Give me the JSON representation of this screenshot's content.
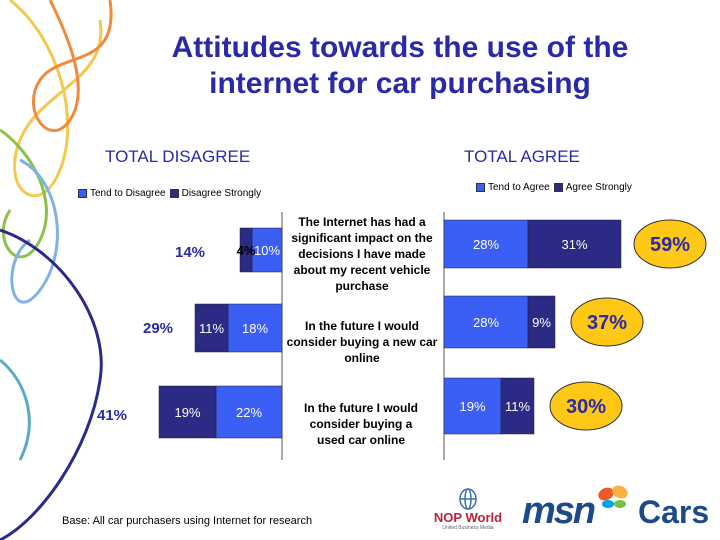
{
  "title": "Attitudes towards the use of the internet for car purchasing",
  "footer": "Base: All car purchasers using Internet for research",
  "brand": {
    "nop": "NOP World",
    "nop_sub": "United Business Media",
    "msn": "msn",
    "cars": "Cars"
  },
  "colors": {
    "light_blue": "#3b5ef5",
    "dark_navy": "#2b2b86",
    "title_blue": "#2a2aa8",
    "badge_yellow": "#ffc817"
  },
  "chart_data": [
    {
      "type": "bar",
      "orientation": "horizontal-stacked",
      "title": "TOTAL DISAGREE",
      "categories": [
        "The Internet has had a significant impact on the decisions I have made about my recent vehicle purchase",
        "In the future I would consider buying a new car online",
        "In the future I would consider buying a used car online"
      ],
      "series": [
        {
          "name": "Tend to Disagree",
          "values": [
            10,
            18,
            22
          ],
          "labels": [
            "10%",
            "18%",
            "22%"
          ]
        },
        {
          "name": "Disagree Strongly",
          "values": [
            4,
            11,
            19
          ],
          "labels": [
            "4%",
            "11%",
            "19%"
          ]
        }
      ],
      "totals": [
        "14%",
        "29%",
        "41%"
      ],
      "legend": "top"
    },
    {
      "type": "bar",
      "orientation": "horizontal-stacked",
      "title": "TOTAL AGREE",
      "categories": [
        "The Internet has had a significant impact on the decisions I have made about my recent vehicle purchase",
        "In the future I would consider buying a new car online",
        "In the future I would consider buying a used car online"
      ],
      "series": [
        {
          "name": "Tend to Agree",
          "values": [
            28,
            28,
            19
          ],
          "labels": [
            "28%",
            "28%",
            "19%"
          ]
        },
        {
          "name": "Agree Strongly",
          "values": [
            31,
            9,
            11
          ],
          "labels": [
            "31%",
            "9%",
            "11%"
          ]
        }
      ],
      "totals": [
        "59%",
        "37%",
        "30%"
      ],
      "legend": "top"
    }
  ],
  "statements": [
    "The Internet has had a significant impact on the decisions I have made about my recent vehicle purchase",
    "In the future I would consider buying a new car online",
    "In the future I would consider buying a used car online"
  ]
}
